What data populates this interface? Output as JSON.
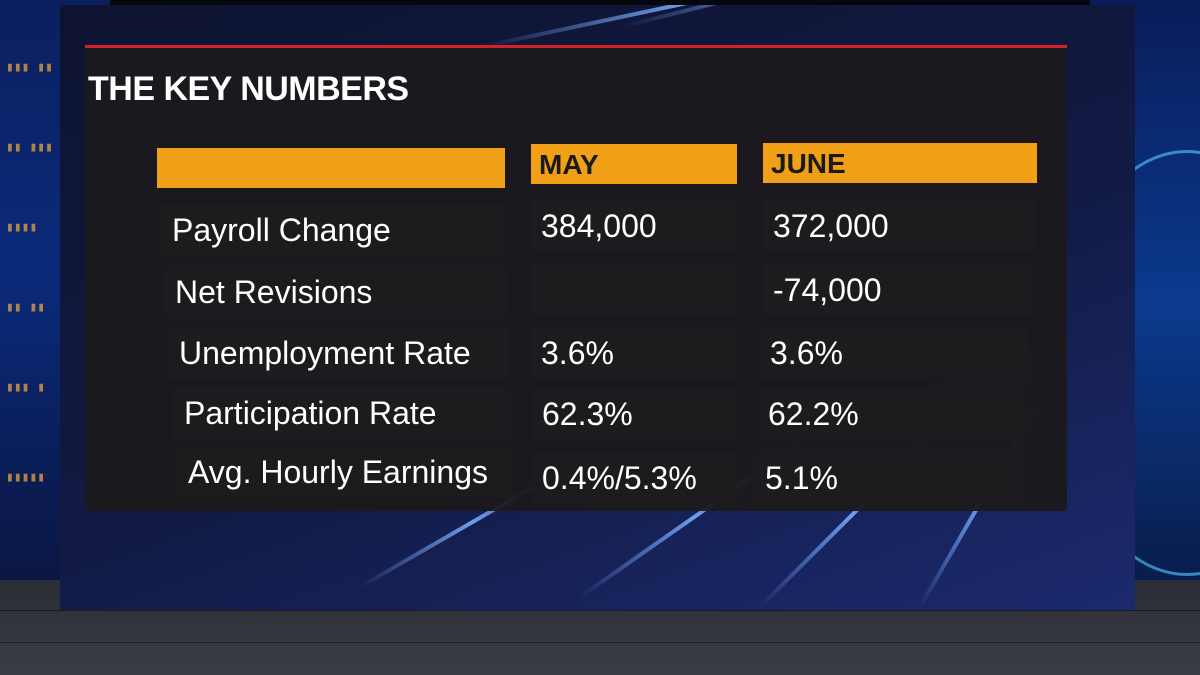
{
  "title": "THE KEY NUMBERS",
  "columns": [
    "MAY",
    "JUNE"
  ],
  "rows": [
    {
      "label": "Payroll Change",
      "may": "384,000",
      "june": "372,000"
    },
    {
      "label": "Net Revisions",
      "may": "",
      "june": "-74,000"
    },
    {
      "label": "Unemployment Rate",
      "may": "3.6%",
      "june": "3.6%"
    },
    {
      "label": "Participation Rate",
      "may": "62.3%",
      "june": "62.2%"
    },
    {
      "label": "Avg. Hourly Earnings",
      "may": "0.4%/5.3%",
      "june": "5.1%"
    }
  ],
  "colors": {
    "accent_orange": "#f29f18",
    "title_rule_red": "#d2232a",
    "panel_dark": "#1c1a1c",
    "backdrop_blue": "#121a44"
  }
}
